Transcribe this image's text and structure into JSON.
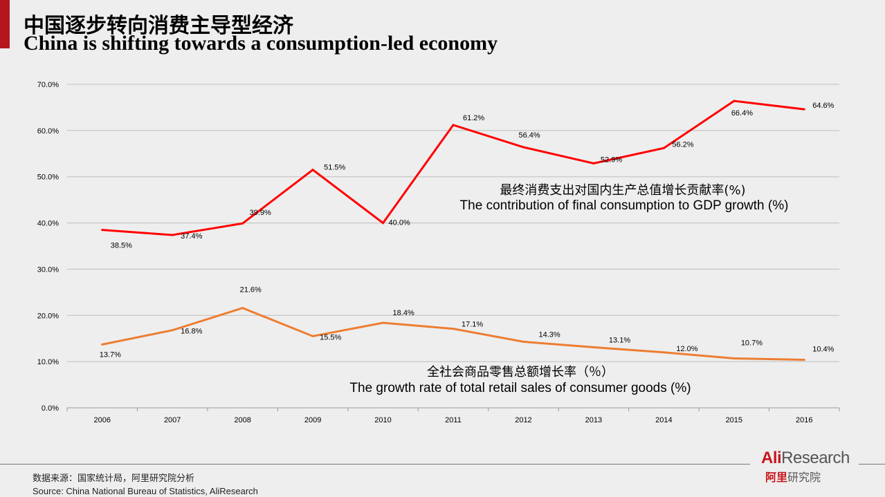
{
  "title_cn": "中国逐步转向消费主导型经济",
  "title_en": "China is shifting towards a consumption-led economy",
  "chart_data": {
    "type": "line",
    "categories": [
      "2006",
      "2007",
      "2008",
      "2009",
      "2010",
      "2011",
      "2012",
      "2013",
      "2014",
      "2015",
      "2016"
    ],
    "ylim": [
      0,
      70
    ],
    "yticks": [
      "0.0%",
      "10.0%",
      "20.0%",
      "30.0%",
      "40.0%",
      "50.0%",
      "60.0%",
      "70.0%"
    ],
    "grid": true,
    "series": [
      {
        "name": "最终消费支出对国内生产总值增长贡献率(%)",
        "name_en": "The contribution of final consumption to GDP growth (%)",
        "color": "#ff0000",
        "values": [
          38.5,
          37.4,
          39.9,
          51.5,
          40.0,
          61.2,
          56.4,
          52.9,
          56.2,
          66.4,
          64.6
        ],
        "labels": [
          "38.5%",
          "37.4%",
          "39.9%",
          "51.5%",
          "40.0%",
          "61.2%",
          "56.4%",
          "52.9%",
          "56.2%",
          "66.4%",
          "64.6%"
        ]
      },
      {
        "name": "全社会商品零售总额增长率（％）",
        "name_en": "The growth rate of total retail sales of consumer goods (%)",
        "color": "#ed7d31",
        "values": [
          13.7,
          16.8,
          21.6,
          15.5,
          18.4,
          17.1,
          14.3,
          13.1,
          12.0,
          10.7,
          10.4
        ],
        "labels": [
          "13.7%",
          "16.8%",
          "21.6%",
          "15.5%",
          "18.4%",
          "17.1%",
          "14.3%",
          "13.1%",
          "12.0%",
          "10.7%",
          "10.4%"
        ]
      }
    ]
  },
  "footer": {
    "source_cn": "数据来源：国家统计局，阿里研究院分析",
    "source_en": "Source: China National Bureau of Statistics, AliResearch"
  },
  "logo": {
    "ali": "Ali",
    "research": "Research",
    "cn_red": "阿里",
    "cn_gray": "研究院"
  }
}
